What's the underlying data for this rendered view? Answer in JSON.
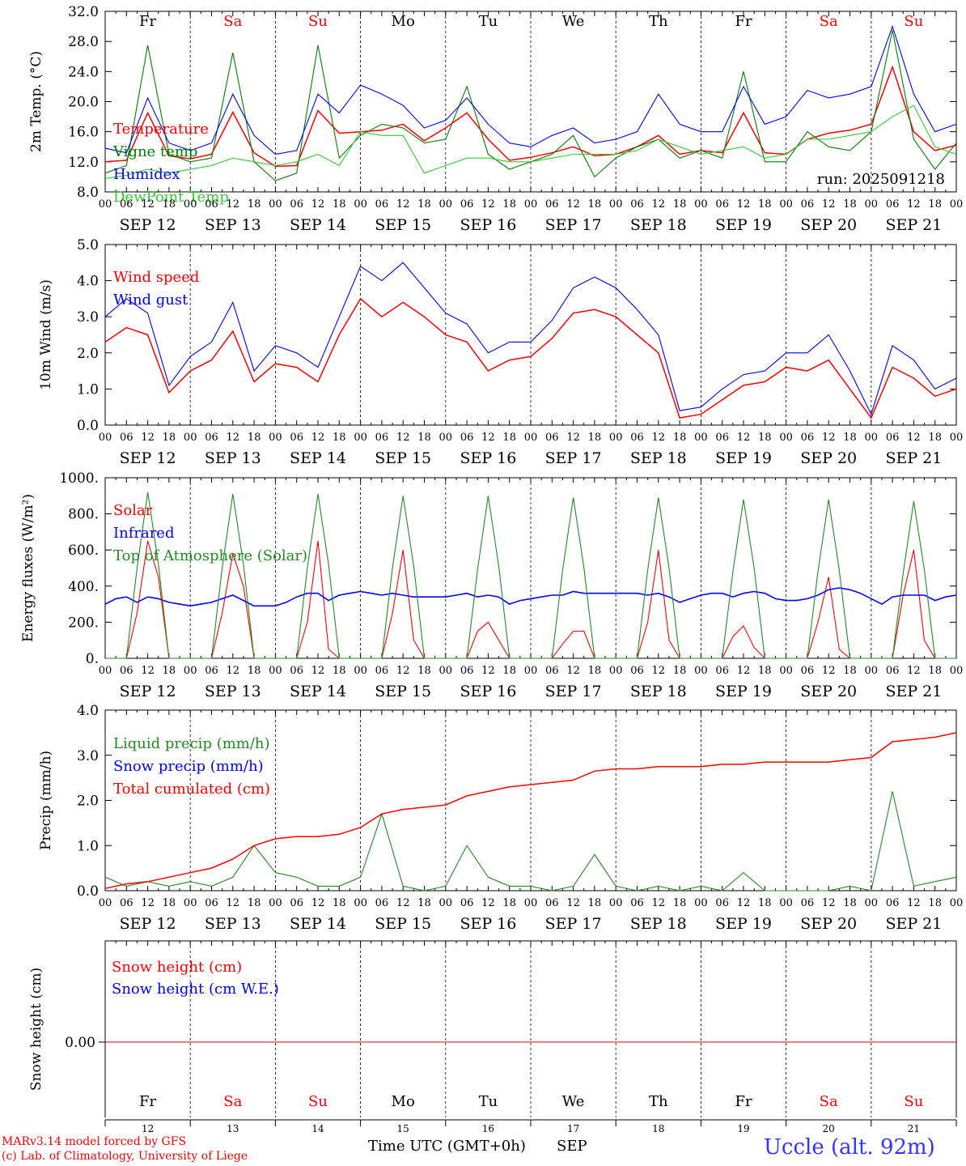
{
  "colors": {
    "red": "#ff0000",
    "green": "#008000",
    "blue": "#0000ff",
    "lightgreen": "#33cc33",
    "darkgreen": "#228b22",
    "axis": "#000000"
  },
  "days": {
    "weekday": [
      "Fr",
      "Sa",
      "Su",
      "Mo",
      "Tu",
      "We",
      "Th",
      "Fr",
      "Sa",
      "Su"
    ],
    "weekend": [
      false,
      true,
      true,
      false,
      false,
      false,
      false,
      false,
      true,
      true
    ],
    "date": [
      "SEP 12",
      "SEP 13",
      "SEP 14",
      "SEP 15",
      "SEP 16",
      "SEP 17",
      "SEP 18",
      "SEP 19",
      "SEP 20",
      "SEP 21"
    ],
    "daynum": [
      "12",
      "13",
      "14",
      "15",
      "16",
      "17",
      "18",
      "19",
      "20",
      "21"
    ],
    "hours": [
      "00",
      "06",
      "12",
      "18"
    ],
    "final_hour": "00"
  },
  "footer": {
    "model_line": "MARv3.14 model forced by GFS",
    "lab_line": "(c) Lab. of Climatology, University of Liege",
    "xlabel": "Time UTC (GMT+0h)",
    "month": "SEP",
    "station": "Uccle (alt. 92m)"
  },
  "chart_data": [
    {
      "type": "line",
      "ylabel": "2m Temp. (°C)",
      "ylim": [
        8,
        32
      ],
      "yticks": [
        "8.0",
        "12.0",
        "16.0",
        "20.0",
        "24.0",
        "28.0",
        "32.0"
      ],
      "annotation": "run: 2025091218",
      "x_unit": "hours since SEP 12 00 UTC",
      "x": [
        0,
        6,
        12,
        18,
        24,
        30,
        36,
        42,
        48,
        54,
        60,
        66,
        72,
        78,
        84,
        90,
        96,
        102,
        108,
        114,
        120,
        126,
        132,
        138,
        144,
        150,
        156,
        162,
        168,
        174,
        180,
        186,
        192,
        198,
        204,
        210,
        216,
        222,
        228,
        234,
        240
      ],
      "series": [
        {
          "name": "Temperature",
          "color": "#ff0000",
          "values": [
            12.0,
            12.2,
            18.5,
            12.8,
            12.4,
            13.0,
            18.6,
            13.2,
            11.4,
            11.5,
            18.8,
            15.8,
            16.0,
            16.2,
            17.0,
            14.8,
            16.5,
            18.5,
            15.0,
            12.2,
            12.6,
            13.2,
            14.0,
            12.8,
            13.0,
            14.0,
            15.5,
            13.0,
            13.5,
            13.2,
            18.5,
            13.2,
            13.0,
            15.0,
            15.8,
            16.2,
            17.0,
            24.6,
            16.0,
            13.5,
            14.2
          ]
        },
        {
          "name": "Vigne temp",
          "color": "#008000",
          "values": [
            10.5,
            11.5,
            27.5,
            13.0,
            12.0,
            12.5,
            26.5,
            12.0,
            9.5,
            10.5,
            27.5,
            12.5,
            15.5,
            17.0,
            16.5,
            14.5,
            15.0,
            22.0,
            13.0,
            11.0,
            12.0,
            13.0,
            15.5,
            10.0,
            12.5,
            14.0,
            15.0,
            12.5,
            13.5,
            12.5,
            24.0,
            12.0,
            12.0,
            16.0,
            14.0,
            13.5,
            16.0,
            29.5,
            15.0,
            11.0,
            14.5
          ]
        },
        {
          "name": "Humidex",
          "color": "#0000ff",
          "values": [
            13.8,
            13.2,
            20.5,
            14.5,
            13.5,
            14.5,
            21.0,
            15.5,
            13.0,
            13.5,
            21.0,
            18.5,
            22.2,
            21.0,
            19.5,
            16.5,
            17.5,
            20.5,
            17.0,
            14.5,
            14.0,
            15.5,
            16.5,
            14.5,
            15.0,
            16.0,
            21.0,
            17.0,
            16.0,
            16.0,
            22.0,
            17.0,
            18.0,
            21.5,
            20.5,
            21.0,
            22.0,
            30.0,
            21.0,
            16.0,
            17.0
          ]
        },
        {
          "name": "DewPoint Temp",
          "color": "#33cc33",
          "values": [
            9.8,
            10.2,
            11.0,
            10.5,
            11.0,
            11.5,
            12.5,
            12.0,
            11.5,
            12.0,
            13.0,
            11.5,
            16.0,
            15.5,
            15.5,
            10.5,
            11.5,
            12.5,
            12.5,
            12.0,
            12.0,
            12.5,
            13.0,
            13.0,
            13.0,
            13.5,
            15.0,
            14.0,
            13.0,
            13.5,
            14.0,
            12.5,
            13.0,
            15.0,
            15.0,
            15.5,
            16.0,
            18.0,
            19.5,
            14.0,
            13.0
          ]
        }
      ]
    },
    {
      "type": "line",
      "ylabel": "10m Wind (m/s)",
      "ylim": [
        0,
        5
      ],
      "yticks": [
        "0.0",
        "1.0",
        "2.0",
        "3.0",
        "4.0",
        "5.0"
      ],
      "x_unit": "hours since SEP 12 00 UTC",
      "x": [
        0,
        6,
        12,
        18,
        24,
        30,
        36,
        42,
        48,
        54,
        60,
        66,
        72,
        78,
        84,
        90,
        96,
        102,
        108,
        114,
        120,
        126,
        132,
        138,
        144,
        150,
        156,
        162,
        168,
        174,
        180,
        186,
        192,
        198,
        204,
        210,
        216,
        222,
        228,
        234,
        240
      ],
      "series": [
        {
          "name": "Wind speed",
          "color": "#ff0000",
          "values": [
            2.3,
            2.7,
            2.5,
            0.9,
            1.5,
            1.8,
            2.6,
            1.2,
            1.7,
            1.6,
            1.2,
            2.5,
            3.5,
            3.0,
            3.4,
            3.0,
            2.5,
            2.3,
            1.5,
            1.8,
            1.9,
            2.4,
            3.1,
            3.2,
            3.0,
            2.5,
            2.0,
            0.2,
            0.3,
            0.7,
            1.1,
            1.2,
            1.6,
            1.5,
            1.8,
            1.0,
            0.2,
            1.6,
            1.3,
            0.8,
            1.0
          ]
        },
        {
          "name": "Wind gust",
          "color": "#0000ff",
          "values": [
            3.0,
            3.5,
            3.1,
            1.1,
            1.9,
            2.3,
            3.4,
            1.5,
            2.2,
            2.0,
            1.6,
            3.0,
            4.4,
            4.0,
            4.5,
            3.8,
            3.1,
            2.8,
            2.0,
            2.3,
            2.3,
            2.9,
            3.8,
            4.1,
            3.8,
            3.2,
            2.5,
            0.4,
            0.5,
            1.0,
            1.4,
            1.5,
            2.0,
            2.0,
            2.5,
            1.5,
            0.3,
            2.2,
            1.8,
            1.0,
            1.3
          ]
        }
      ]
    },
    {
      "type": "line",
      "ylabel": "Energy fluxes (W/m²)",
      "ylim": [
        0,
        1000
      ],
      "yticks": [
        "0.",
        "200.",
        "400.",
        "600.",
        "800.",
        "1000."
      ],
      "x_unit": "hours since SEP 12 00 UTC",
      "x": [
        0,
        3,
        6,
        9,
        12,
        15,
        18,
        21,
        24,
        27,
        30,
        33,
        36,
        39,
        42,
        45,
        48,
        51,
        54,
        57,
        60,
        63,
        66,
        69,
        72,
        75,
        78,
        81,
        84,
        87,
        90,
        93,
        96,
        99,
        102,
        105,
        108,
        111,
        114,
        117,
        120,
        123,
        126,
        129,
        132,
        135,
        138,
        141,
        144,
        147,
        150,
        153,
        156,
        159,
        162,
        165,
        168,
        171,
        174,
        177,
        180,
        183,
        186,
        189,
        192,
        195,
        198,
        201,
        204,
        207,
        210,
        213,
        216,
        219,
        222,
        225,
        228,
        231,
        234,
        237,
        240
      ],
      "series": [
        {
          "name": "Solar",
          "color": "#ff0000",
          "values": [
            0,
            0,
            0,
            250,
            650,
            450,
            0,
            0,
            0,
            0,
            0,
            250,
            580,
            400,
            0,
            0,
            0,
            0,
            0,
            200,
            650,
            50,
            0,
            0,
            0,
            0,
            0,
            250,
            600,
            100,
            0,
            0,
            0,
            0,
            0,
            150,
            200,
            100,
            0,
            0,
            0,
            0,
            0,
            80,
            150,
            150,
            0,
            0,
            0,
            0,
            0,
            200,
            600,
            100,
            0,
            0,
            0,
            0,
            0,
            120,
            180,
            60,
            0,
            0,
            0,
            0,
            0,
            200,
            450,
            50,
            0,
            0,
            0,
            0,
            0,
            350,
            600,
            100,
            0,
            0,
            0
          ]
        },
        {
          "name": "Infrared",
          "color": "#0000ff",
          "values": [
            300,
            330,
            340,
            310,
            340,
            330,
            310,
            300,
            290,
            300,
            310,
            330,
            350,
            320,
            290,
            290,
            290,
            310,
            340,
            360,
            360,
            320,
            350,
            360,
            370,
            360,
            350,
            360,
            350,
            340,
            340,
            340,
            340,
            350,
            360,
            340,
            350,
            340,
            300,
            320,
            330,
            340,
            350,
            350,
            370,
            360,
            360,
            360,
            360,
            360,
            360,
            350,
            360,
            340,
            310,
            330,
            350,
            360,
            360,
            340,
            360,
            370,
            360,
            330,
            320,
            320,
            330,
            350,
            380,
            390,
            380,
            360,
            330,
            300,
            340,
            350,
            350,
            350,
            320,
            340,
            350
          ]
        },
        {
          "name": "Top of Atmosphere (Solar)",
          "color": "#228b22",
          "values": [
            0,
            0,
            0,
            500,
            920,
            520,
            0,
            0,
            0,
            0,
            0,
            500,
            910,
            520,
            0,
            0,
            0,
            0,
            0,
            500,
            910,
            520,
            0,
            0,
            0,
            0,
            0,
            500,
            900,
            510,
            0,
            0,
            0,
            0,
            0,
            490,
            900,
            510,
            0,
            0,
            0,
            0,
            0,
            490,
            890,
            500,
            0,
            0,
            0,
            0,
            0,
            490,
            890,
            500,
            0,
            0,
            0,
            0,
            0,
            480,
            880,
            500,
            0,
            0,
            0,
            0,
            0,
            480,
            880,
            490,
            0,
            0,
            0,
            0,
            0,
            470,
            870,
            490,
            0,
            0,
            0
          ]
        }
      ]
    },
    {
      "type": "line",
      "ylabel": "Precip (mm/h)",
      "ylim": [
        0,
        4
      ],
      "yticks": [
        "0.0",
        "1.0",
        "2.0",
        "3.0",
        "4.0"
      ],
      "x_unit": "hours since SEP 12 00 UTC",
      "x": [
        0,
        6,
        12,
        18,
        24,
        30,
        36,
        42,
        48,
        54,
        60,
        66,
        72,
        78,
        84,
        90,
        96,
        102,
        108,
        114,
        120,
        126,
        132,
        138,
        144,
        150,
        156,
        162,
        168,
        174,
        180,
        186,
        192,
        198,
        204,
        210,
        216,
        222,
        228,
        234,
        240
      ],
      "series": [
        {
          "name": "Liquid precip (mm/h)",
          "color": "#228b22",
          "values": [
            0.3,
            0.1,
            0.2,
            0.1,
            0.2,
            0.1,
            0.3,
            1.0,
            0.4,
            0.3,
            0.1,
            0.1,
            0.3,
            1.7,
            0.1,
            0.0,
            0.1,
            1.0,
            0.3,
            0.1,
            0.1,
            0.0,
            0.1,
            0.8,
            0.1,
            0.0,
            0.1,
            0.0,
            0.1,
            0.0,
            0.4,
            0.0,
            0.0,
            0.0,
            0.0,
            0.1,
            0.0,
            2.2,
            0.1,
            0.2,
            0.3
          ]
        },
        {
          "name": "Snow precip (mm/h)",
          "color": "#0000ff",
          "values": [
            0,
            0,
            0,
            0,
            0,
            0,
            0,
            0,
            0,
            0,
            0,
            0,
            0,
            0,
            0,
            0,
            0,
            0,
            0,
            0,
            0,
            0,
            0,
            0,
            0,
            0,
            0,
            0,
            0,
            0,
            0,
            0,
            0,
            0,
            0,
            0,
            0,
            0,
            0,
            0,
            0
          ]
        },
        {
          "name": "Total cumulated (cm)",
          "color": "#ff0000",
          "values": [
            0.05,
            0.15,
            0.2,
            0.3,
            0.4,
            0.5,
            0.7,
            1.0,
            1.15,
            1.2,
            1.2,
            1.25,
            1.4,
            1.7,
            1.8,
            1.85,
            1.9,
            2.1,
            2.2,
            2.3,
            2.35,
            2.4,
            2.45,
            2.65,
            2.7,
            2.7,
            2.75,
            2.75,
            2.75,
            2.8,
            2.8,
            2.85,
            2.85,
            2.85,
            2.85,
            2.9,
            2.95,
            3.3,
            3.35,
            3.4,
            3.5
          ]
        }
      ]
    },
    {
      "type": "line",
      "ylabel": "Snow height (cm)",
      "yticks": [
        "0.00"
      ],
      "x_unit": "hours since SEP 12 00 UTC",
      "x": [
        0,
        240
      ],
      "series": [
        {
          "name": "Snow height (cm)",
          "color": "#ff0000",
          "values": [
            0,
            0
          ]
        },
        {
          "name": "Snow height (cm W.E.)",
          "color": "#0000ff",
          "values": [
            0,
            0
          ]
        }
      ]
    }
  ]
}
